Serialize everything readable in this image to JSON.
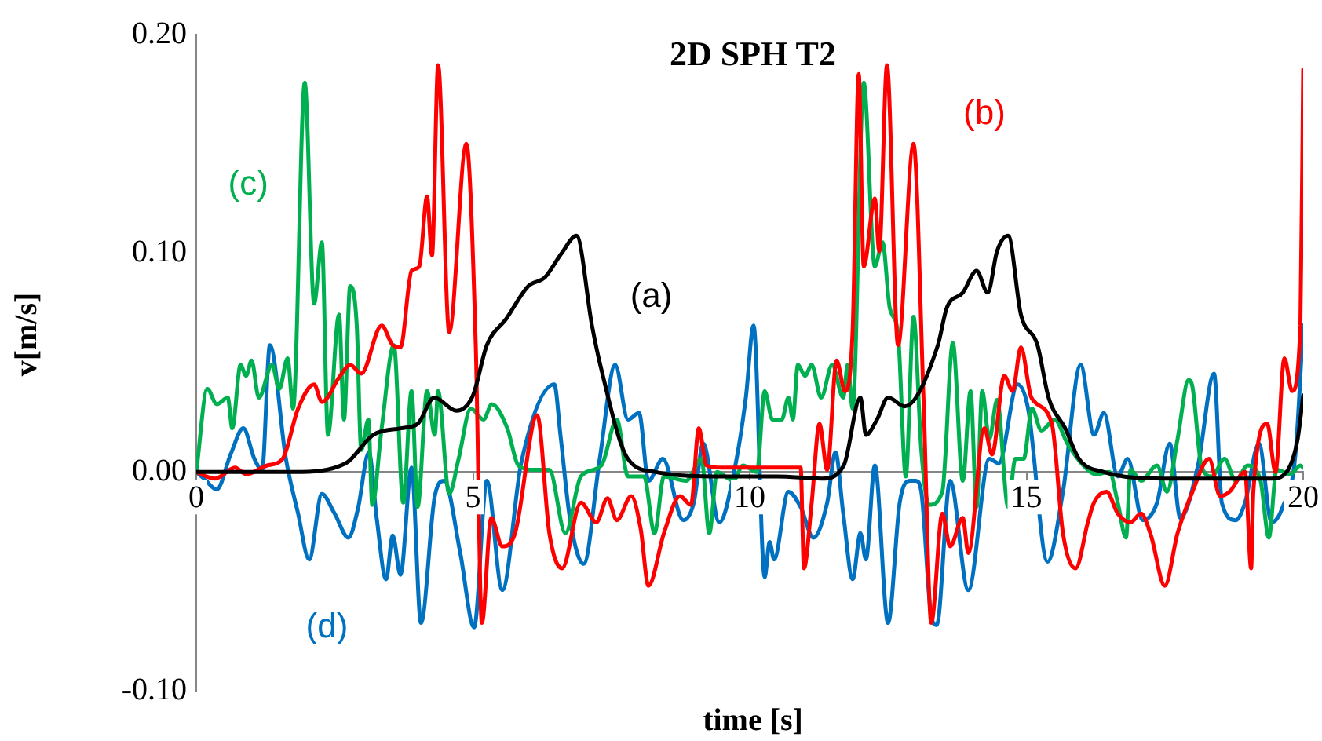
{
  "chart_data": {
    "type": "line",
    "title": "2D SPH T2",
    "xlabel": "time [s]",
    "ylabel": "v[m/s]",
    "xlim": [
      0,
      20
    ],
    "xticks": [
      0,
      5,
      10,
      15,
      20
    ],
    "ylim": [
      -0.1,
      0.2
    ],
    "yticks": [
      {
        "value": -0.1,
        "label": "-0.10"
      },
      {
        "value": 0,
        "label": "0.00"
      },
      {
        "value": 0.1,
        "label": "0.10"
      },
      {
        "value": 0.2,
        "label": "0.20"
      }
    ],
    "grid": false,
    "legend": false,
    "marker": "none",
    "line_style": "solid",
    "series": [
      {
        "name": "(a)",
        "color": "#000000",
        "x": [
          0,
          1.76,
          2.7,
          3.2,
          3.7,
          4.0,
          4.3,
          4.7,
          5.0,
          5.25,
          5.6,
          6.0,
          6.3,
          6.6,
          6.87,
          7.15,
          7.3,
          7.8,
          8.3,
          9.5,
          10.5,
          11.3,
          11.7,
          12.0,
          12.1,
          12.3,
          12.5,
          12.8,
          13.4,
          13.56,
          13.85,
          14.1,
          14.3,
          14.47,
          14.67,
          14.9,
          15.2,
          15.4,
          15.7,
          15.95,
          16.4,
          17.5,
          18.5,
          19.43,
          19.7,
          19.9,
          20
        ],
        "values": [
          0,
          0,
          0.004,
          0.017,
          0.02,
          0.022,
          0.034,
          0.028,
          0.035,
          0.058,
          0.07,
          0.085,
          0.089,
          0.1,
          0.108,
          0.067,
          0.049,
          0.006,
          0,
          -0.002,
          -0.002,
          -0.003,
          0.003,
          0.034,
          0.017,
          0.024,
          0.034,
          0.03,
          0.058,
          0.075,
          0.082,
          0.092,
          0.082,
          0.101,
          0.108,
          0.072,
          0.058,
          0.034,
          0.02,
          0.006,
          0,
          -0.003,
          -0.003,
          -0.003,
          0,
          0.015,
          0.035
        ]
      },
      {
        "name": "(b)",
        "color": "#ff0000",
        "x": [
          0,
          0.34,
          0.7,
          0.9,
          1.28,
          1.56,
          1.84,
          2.13,
          2.27,
          2.6,
          2.78,
          2.98,
          3.35,
          3.55,
          3.69,
          3.89,
          4.03,
          4.17,
          4.26,
          4.37,
          4.57,
          4.88,
          5.05,
          5.16,
          5.33,
          5.53,
          5.76,
          6.16,
          6.38,
          6.61,
          6.95,
          7.23,
          7.43,
          7.6,
          7.86,
          8.03,
          8.17,
          8.45,
          8.74,
          8.94,
          9.08,
          9.22,
          9.5,
          10.92,
          10.98,
          11.12,
          11.26,
          11.4,
          11.57,
          11.72,
          11.86,
          11.97,
          12.06,
          12.26,
          12.34,
          12.48,
          12.68,
          12.96,
          13.14,
          13.28,
          13.48,
          13.62,
          13.85,
          13.95,
          14.24,
          14.38,
          14.6,
          14.75,
          14.9,
          15.09,
          15.46,
          15.66,
          15.89,
          16.11,
          16.22,
          16.45,
          16.65,
          16.88,
          17.07,
          17.25,
          17.5,
          17.73,
          18.0,
          18.3,
          18.5,
          18.67,
          18.95,
          19.06,
          19.1,
          19.35,
          19.5,
          19.66,
          19.8,
          19.95,
          20
        ],
        "values": [
          0,
          -0.003,
          0.002,
          -0.001,
          0.003,
          0.006,
          0.029,
          0.04,
          0.032,
          0.044,
          0.049,
          0.045,
          0.067,
          0.058,
          0.057,
          0.092,
          0.094,
          0.126,
          0.099,
          0.186,
          0.064,
          0.15,
          0.058,
          -0.069,
          -0.021,
          -0.034,
          -0.028,
          0.026,
          -0.028,
          -0.044,
          -0.014,
          -0.023,
          -0.012,
          -0.022,
          -0.011,
          -0.026,
          -0.052,
          -0.028,
          -0.011,
          -0.015,
          0.02,
          0.003,
          0.002,
          0.002,
          -0.044,
          -0.014,
          0.022,
          0.001,
          0.051,
          0.037,
          0.065,
          0.182,
          0.094,
          0.125,
          0.101,
          0.186,
          0.058,
          0.15,
          0.034,
          -0.069,
          -0.019,
          -0.034,
          -0.021,
          -0.037,
          0.02,
          0.008,
          0.044,
          0.037,
          0.057,
          0.034,
          0.022,
          -0.028,
          -0.044,
          -0.023,
          -0.014,
          -0.009,
          -0.019,
          -0.023,
          -0.019,
          -0.029,
          -0.052,
          -0.028,
          -0.009,
          0.006,
          -0.011,
          -0.009,
          0,
          -0.044,
          -0.009,
          0.022,
          0,
          0.052,
          0.037,
          0.067,
          0.184
        ]
      },
      {
        "name": "(c)",
        "color": "#00b050",
        "x": [
          0,
          0.2,
          0.37,
          0.57,
          0.65,
          0.8,
          0.9,
          1.0,
          1.13,
          1.37,
          1.5,
          1.65,
          1.75,
          1.96,
          2.13,
          2.27,
          2.38,
          2.58,
          2.67,
          2.78,
          2.9,
          2.98,
          3.11,
          3.18,
          3.35,
          3.57,
          3.74,
          3.89,
          4.0,
          4.17,
          4.31,
          4.37,
          4.57,
          4.74,
          4.96,
          5.19,
          5.34,
          5.62,
          5.82,
          6.1,
          6.38,
          6.67,
          6.95,
          7.32,
          7.6,
          7.8,
          8.09,
          8.28,
          8.45,
          8.85,
          9.13,
          9.27,
          9.41,
          9.7,
          9.88,
          10.13,
          10.27,
          10.41,
          10.58,
          10.7,
          10.78,
          10.87,
          11.0,
          11.12,
          11.29,
          11.49,
          11.69,
          11.77,
          11.86,
          12.06,
          12.26,
          12.4,
          12.53,
          12.68,
          12.82,
          12.96,
          13.1,
          13.24,
          13.48,
          13.67,
          13.85,
          13.99,
          14.1,
          14.2,
          14.33,
          14.47,
          14.67,
          14.8,
          14.95,
          15.1,
          15.27,
          15.51,
          15.74,
          16.03,
          16.26,
          16.5,
          16.65,
          16.8,
          16.88,
          17.07,
          17.36,
          17.54,
          17.73,
          17.93,
          18.0,
          18.16,
          18.35,
          18.58,
          18.78,
          19.0,
          19.23,
          19.38,
          19.52,
          19.77,
          19.95,
          20
        ],
        "values": [
          0,
          0.038,
          0.031,
          0.034,
          0.02,
          0.049,
          0.044,
          0.051,
          0.034,
          0.049,
          0.038,
          0.052,
          0.029,
          0.178,
          0.077,
          0.105,
          0.017,
          0.072,
          0.024,
          0.085,
          0.067,
          0.01,
          0.024,
          -0.015,
          0.02,
          0.058,
          -0.014,
          0.037,
          -0.016,
          0.037,
          0.017,
          0.037,
          -0.01,
          0.006,
          0.029,
          0.024,
          0.031,
          0.02,
          0.003,
          0.001,
          0.001,
          -0.028,
          -0.002,
          0.003,
          0.024,
          -0.002,
          -0.002,
          -0.028,
          -0.002,
          -0.004,
          0.006,
          -0.028,
          0,
          -0.004,
          0.003,
          0,
          0.037,
          0.024,
          0.024,
          0.034,
          0.024,
          0.049,
          0.044,
          0.049,
          0.034,
          0.049,
          0.034,
          0.049,
          0.029,
          0.178,
          0.094,
          0.105,
          0.075,
          0.063,
          -0.002,
          0.071,
          0.01,
          -0.015,
          -0.009,
          0.059,
          -0.004,
          0.037,
          -0.016,
          0.037,
          0.015,
          0.033,
          -0.016,
          0.006,
          0.006,
          0.029,
          0.019,
          0.024,
          0.013,
          0.003,
          -0.001,
          0,
          -0.014,
          -0.03,
          0.001,
          -0.004,
          0.003,
          -0.009,
          0.015,
          0.042,
          0.039,
          0.003,
          -0.002,
          0.006,
          -0.004,
          0.003,
          -0.004,
          -0.03,
          0.001,
          -0.001,
          0.003,
          0.002
        ]
      },
      {
        "name": "(d)",
        "color": "#0070c0",
        "x": [
          0,
          0.14,
          0.37,
          0.62,
          0.85,
          1.05,
          1.19,
          1.33,
          1.62,
          1.84,
          2.04,
          2.27,
          2.5,
          2.75,
          2.92,
          3.12,
          3.26,
          3.43,
          3.55,
          3.69,
          3.89,
          4.06,
          4.31,
          4.48,
          4.77,
          5.02,
          5.25,
          5.53,
          5.87,
          6.47,
          6.58,
          6.75,
          7.0,
          7.29,
          7.57,
          7.8,
          8.0,
          8.17,
          8.43,
          8.8,
          8.99,
          9.16,
          9.45,
          9.74,
          9.93,
          10.07,
          10.27,
          10.36,
          10.44,
          10.7,
          10.92,
          11.15,
          11.4,
          11.55,
          11.69,
          11.86,
          12.0,
          12.1,
          12.26,
          12.5,
          12.71,
          12.9,
          13.0,
          13.1,
          13.28,
          13.38,
          13.62,
          13.95,
          14.33,
          14.5,
          14.84,
          15.03,
          15.38,
          15.66,
          15.98,
          16.22,
          16.4,
          16.65,
          16.83,
          17.1,
          17.36,
          17.59,
          17.78,
          18.1,
          18.39,
          18.53,
          18.78,
          18.95,
          19.2,
          19.43,
          19.63,
          19.86,
          20
        ],
        "values": [
          0,
          -0.003,
          -0.008,
          0.008,
          0.02,
          0.006,
          0.001,
          0.058,
          0.006,
          -0.019,
          -0.04,
          -0.01,
          -0.019,
          -0.03,
          -0.017,
          0.009,
          -0.021,
          -0.049,
          -0.029,
          -0.047,
          0.002,
          -0.069,
          -0.011,
          -0.004,
          -0.037,
          -0.071,
          -0.004,
          -0.054,
          0.004,
          0.04,
          0.017,
          -0.021,
          -0.042,
          0.006,
          0.049,
          0.024,
          0.027,
          -0.004,
          0.006,
          -0.022,
          -0.014,
          0.013,
          -0.023,
          0.003,
          0.034,
          0.067,
          -0.048,
          -0.032,
          -0.04,
          -0.009,
          -0.016,
          -0.03,
          -0.014,
          0.009,
          -0.019,
          -0.049,
          -0.028,
          -0.04,
          0.003,
          -0.069,
          -0.014,
          -0.004,
          -0.004,
          -0.009,
          -0.066,
          -0.07,
          -0.004,
          -0.054,
          0.006,
          0.004,
          0.04,
          0.029,
          -0.041,
          -0.009,
          0.049,
          0.017,
          0.027,
          -0.002,
          0.006,
          -0.022,
          -0.014,
          0.013,
          -0.021,
          0.003,
          0.045,
          -0.014,
          -0.022,
          -0.014,
          0.013,
          -0.023,
          -0.016,
          0.008,
          0.067
        ]
      }
    ]
  }
}
